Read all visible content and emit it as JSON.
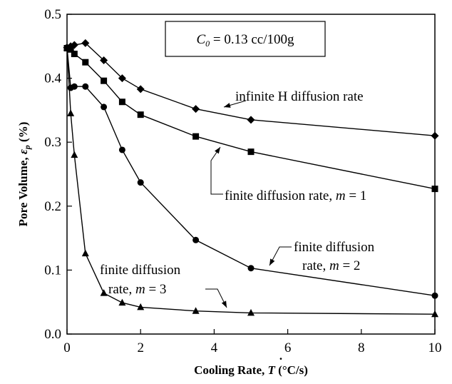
{
  "chart_data": {
    "type": "line",
    "xlabel": {
      "prefix": "Cooling Rate, ",
      "symbol": "T",
      "unit": " (°C/s)"
    },
    "ylabel": {
      "prefix": "Pore Volume, ",
      "symbol": "ε",
      "sub": "p",
      "unit": " (%)"
    },
    "xlim": [
      0,
      10
    ],
    "ylim": [
      0,
      0.5
    ],
    "xticks": [
      "0",
      "2",
      "4",
      "6",
      "8",
      "10"
    ],
    "yticks": [
      "0.0",
      "0.1",
      "0.2",
      "0.3",
      "0.4",
      "0.5"
    ],
    "grid": false,
    "annotation_box": {
      "symbol": "C",
      "sub": "0",
      "text": " = 0.13 cc/100g"
    },
    "series": [
      {
        "name": "infinite H diffusion rate",
        "marker": "diamond",
        "x": [
          0,
          0.1,
          0.2,
          0.5,
          1.0,
          1.5,
          2.0,
          3.5,
          5.0,
          10.0
        ],
        "y": [
          0.448,
          0.45,
          0.452,
          0.455,
          0.428,
          0.4,
          0.383,
          0.352,
          0.335,
          0.31
        ]
      },
      {
        "name": "finite diffusion rate, m = 1",
        "label_parts": [
          "finite diffusion rate, ",
          "m",
          " = 1"
        ],
        "marker": "square",
        "x": [
          0,
          0.1,
          0.2,
          0.5,
          1.0,
          1.5,
          2.0,
          3.5,
          5.0,
          10.0
        ],
        "y": [
          0.447,
          0.445,
          0.438,
          0.425,
          0.396,
          0.363,
          0.343,
          0.309,
          0.285,
          0.227
        ]
      },
      {
        "name": "finite diffusion rate, m = 2",
        "label_lines": [
          [
            "finite diffusion"
          ],
          [
            "rate, ",
            "m",
            " = 2"
          ]
        ],
        "marker": "circle",
        "x": [
          0,
          0.1,
          0.2,
          0.5,
          1.0,
          1.5,
          2.0,
          3.5,
          5.0,
          10.0
        ],
        "y": [
          0.448,
          0.385,
          0.387,
          0.387,
          0.355,
          0.288,
          0.237,
          0.147,
          0.103,
          0.06
        ]
      },
      {
        "name": "finite diffusion rate, m = 3",
        "label_lines": [
          [
            "finite diffusion"
          ],
          [
            "rate, ",
            "m",
            " = 3"
          ]
        ],
        "marker": "triangle",
        "x": [
          0,
          0.1,
          0.2,
          0.5,
          1.0,
          1.5,
          2.0,
          3.5,
          5.0,
          10.0
        ],
        "y": [
          0.448,
          0.345,
          0.28,
          0.126,
          0.064,
          0.049,
          0.042,
          0.036,
          0.033,
          0.031
        ]
      }
    ]
  }
}
